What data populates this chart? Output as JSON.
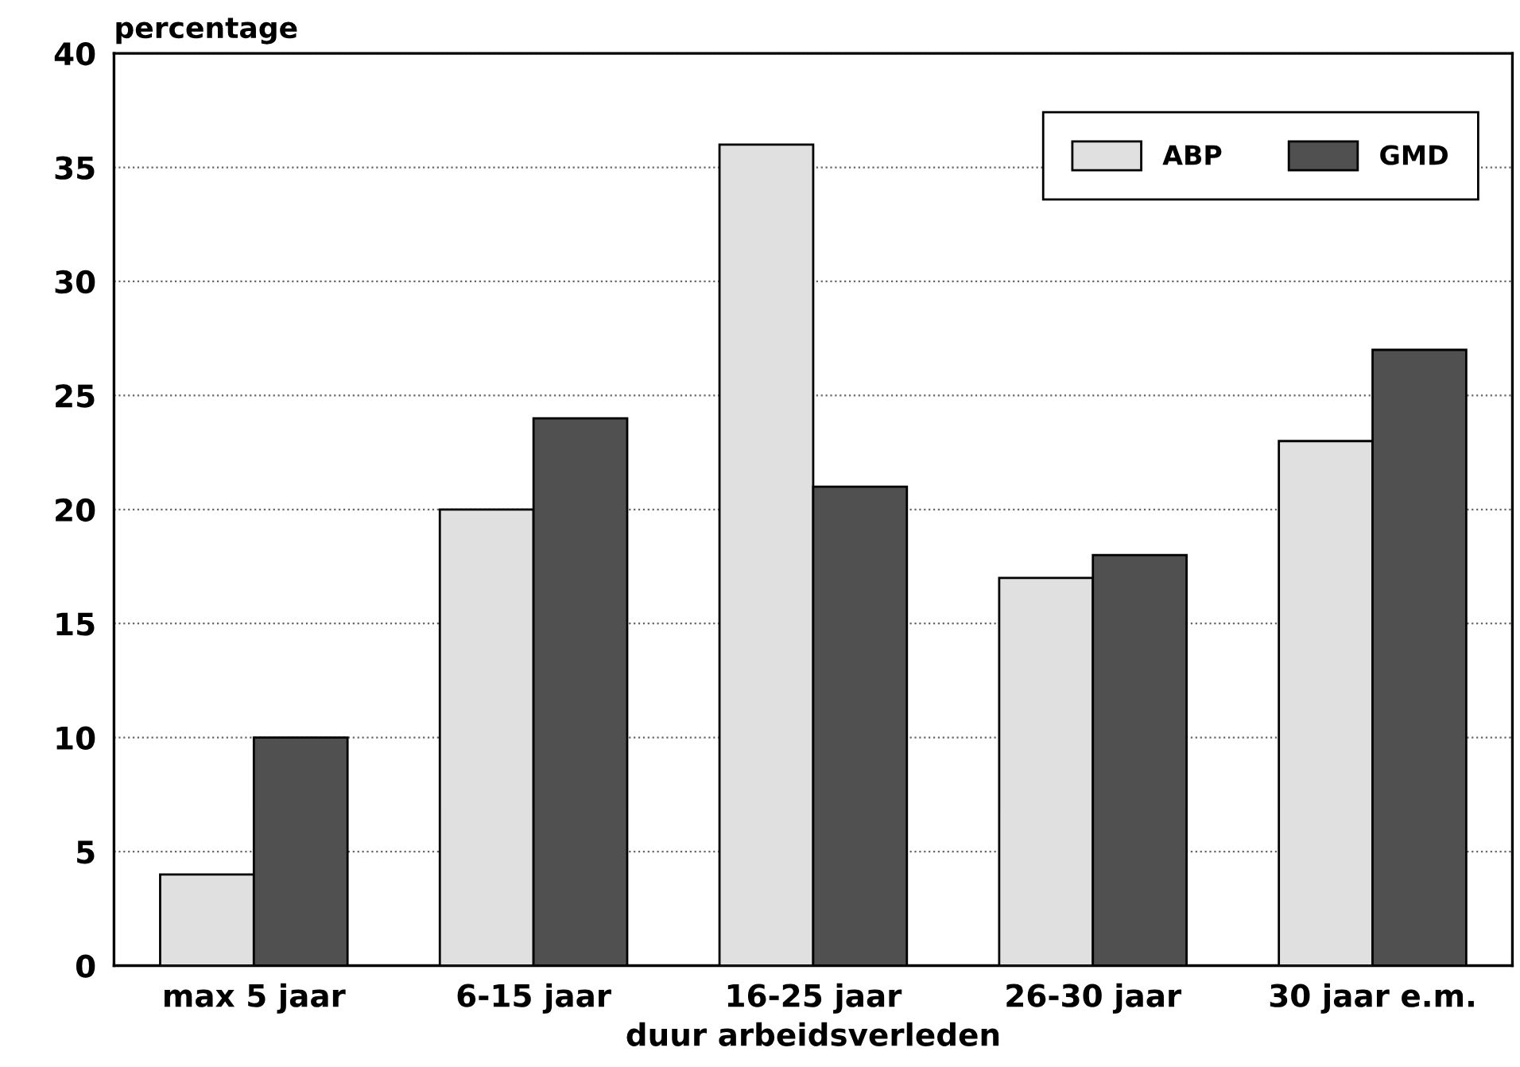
{
  "chart_data": {
    "type": "bar",
    "ylabel": "percentage",
    "xlabel": "duur arbeidsverleden",
    "categories": [
      "max 5 jaar",
      "6-15 jaar",
      "16-25 jaar",
      "26-30 jaar",
      "30 jaar e.m."
    ],
    "series": [
      {
        "name": "ABP",
        "color": "#e0e0e0",
        "values": [
          4,
          20,
          36,
          17,
          23
        ]
      },
      {
        "name": "GMD",
        "color": "#505050",
        "values": [
          10,
          24,
          21,
          18,
          27
        ]
      }
    ],
    "ylim": [
      0,
      40
    ],
    "yticks": [
      0,
      5,
      10,
      15,
      20,
      25,
      30,
      35,
      40
    ],
    "grid": "y",
    "legend": "top right"
  }
}
